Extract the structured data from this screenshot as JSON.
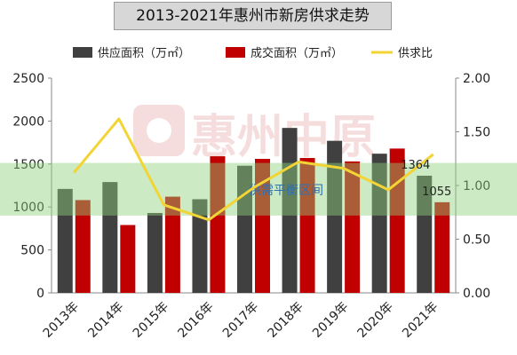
{
  "title": "2013-2021年惠州市新房供求走势",
  "watermark": "惠州中原",
  "band_label": "供需平衡区间",
  "chart_data": {
    "type": "bar",
    "categories": [
      "2013年",
      "2014年",
      "2015年",
      "2016年",
      "2017年",
      "2018年",
      "2019年",
      "2020年",
      "2021年"
    ],
    "series": [
      {
        "name": "供应面积（万㎡）",
        "type": "bar",
        "axis": "left",
        "color": "#404040",
        "values": [
          1210,
          1290,
          930,
          1090,
          1480,
          1920,
          1770,
          1620,
          1364
        ]
      },
      {
        "name": "成交面积（万㎡）",
        "type": "bar",
        "axis": "left",
        "color": "#c00000",
        "values": [
          1080,
          790,
          1120,
          1590,
          1560,
          1570,
          1530,
          1680,
          1055
        ]
      },
      {
        "name": "供求比",
        "type": "line",
        "axis": "right",
        "color": "#f2d535",
        "values": [
          1.12,
          1.62,
          0.82,
          0.68,
          0.98,
          1.22,
          1.16,
          0.96,
          1.29
        ]
      }
    ],
    "data_labels": [
      {
        "series": 0,
        "index": 8,
        "text": "1364"
      },
      {
        "series": 1,
        "index": 8,
        "text": "1055"
      }
    ],
    "y_left": {
      "min": 0,
      "max": 2500,
      "ticks": [
        "0",
        "500",
        "1000",
        "1500",
        "2000",
        "2500"
      ]
    },
    "y_right": {
      "min": 0,
      "max": 2,
      "ticks": [
        "0.00",
        "0.50",
        "1.00",
        "1.50",
        "2.00"
      ]
    },
    "band": {
      "from": 0.72,
      "to": 1.21
    },
    "legend_position": "top"
  }
}
